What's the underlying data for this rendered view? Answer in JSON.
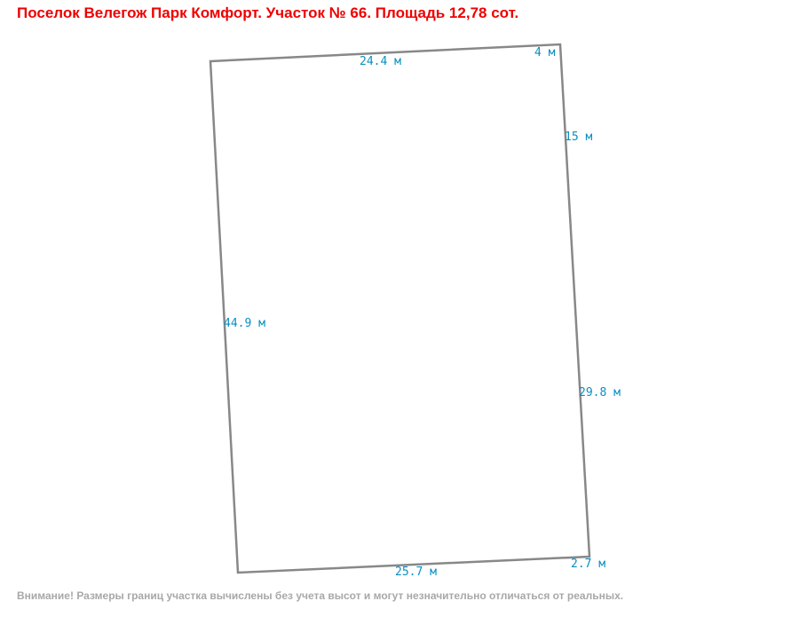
{
  "title": "Поселок Велегож Парк Комфорт. Участок № 66. Площадь 12,78 сот.",
  "edges": [
    {
      "label": "24.4 м"
    },
    {
      "label": "4 м"
    },
    {
      "label": "15 м"
    },
    {
      "label": "29.8 м"
    },
    {
      "label": "2.7 м"
    },
    {
      "label": "25.7 м"
    },
    {
      "label": "44.9 м"
    }
  ],
  "note": "Внимание! Размеры границ участка вычислены без учета высот и могут незначительно отличаться от реальных."
}
